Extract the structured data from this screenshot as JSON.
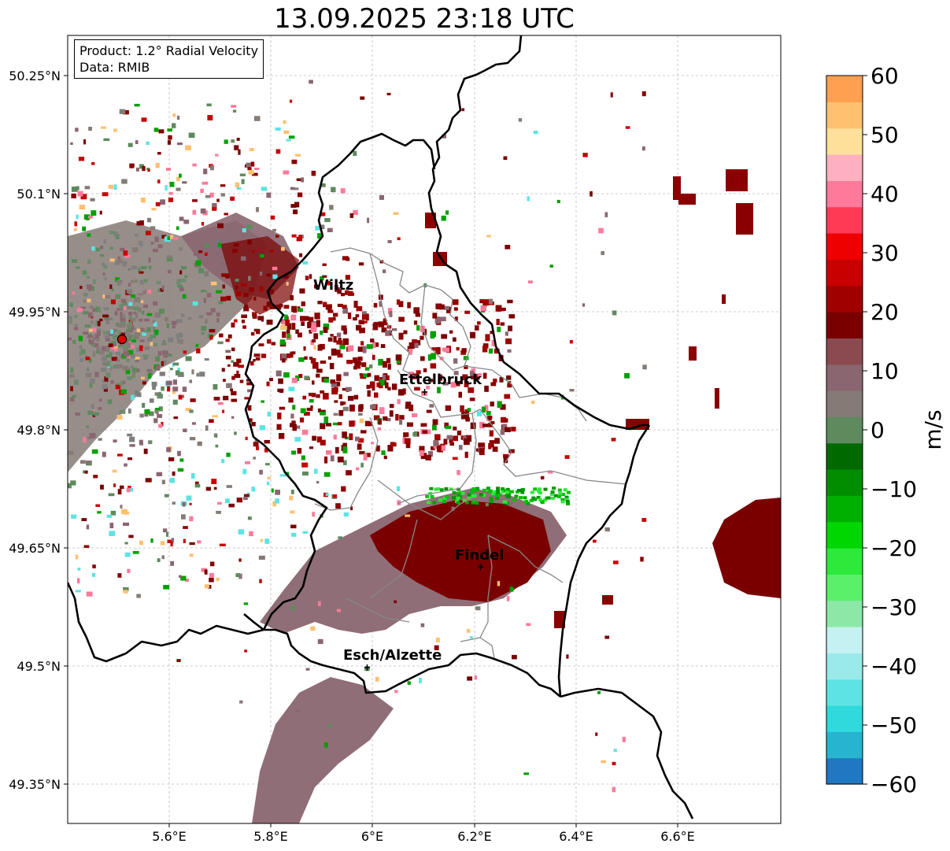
{
  "title": "13.09.2025 23:18 UTC",
  "info": {
    "product": "Product: 1.2° Radial Velocity",
    "data": "Data: RMIB"
  },
  "axes": {
    "lon_ticks": [
      "5.6°E",
      "5.8°E",
      "6°E",
      "6.2°E",
      "6.4°E",
      "6.6°E"
    ],
    "lat_ticks": [
      "50.25°N",
      "50.1°N",
      "49.95°N",
      "49.8°N",
      "49.65°N",
      "49.5°N",
      "49.35°N"
    ]
  },
  "colorbar": {
    "unit": "m/s",
    "ticks": [
      "60",
      "50",
      "40",
      "30",
      "20",
      "10",
      "0",
      "−10",
      "−20",
      "−30",
      "−40",
      "−50",
      "−60"
    ],
    "colors": [
      "#1f78c1",
      "#26b4d0",
      "#2fd9dc",
      "#5ee3e3",
      "#9beaea",
      "#c4f1f1",
      "#8de8a8",
      "#5af06a",
      "#2ee83a",
      "#00d600",
      "#00b000",
      "#008e00",
      "#006a00",
      "#5e8a5e",
      "#857a76",
      "#8a6670",
      "#8a4a50",
      "#7a0000",
      "#a00000",
      "#c80000",
      "#ee0000",
      "#ff3a55",
      "#ff7a9a",
      "#ffb0c0",
      "#ffe09a",
      "#ffc070",
      "#ffa050"
    ]
  },
  "cities": [
    {
      "name": "Wiltz"
    },
    {
      "name": "Ettelbruck"
    },
    {
      "name": "Findel"
    },
    {
      "name": "Esch/Alzette"
    }
  ],
  "colors": {
    "outbound_strong": "#7a0000",
    "outbound_weak": "#8a6670",
    "inbound": "#00a000",
    "border": "#000000",
    "canton": "#888888",
    "radar_site": "#e00000"
  }
}
